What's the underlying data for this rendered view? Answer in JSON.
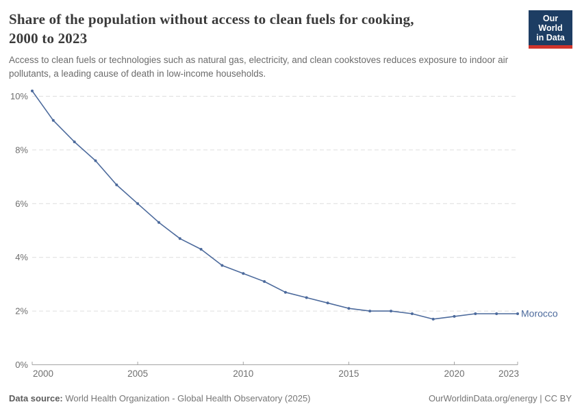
{
  "header": {
    "title_lines": [
      "Share of the population without access to clean fuels for cooking,",
      "2000 to 2023"
    ],
    "subtitle_lines": [
      "Access to clean fuels or technologies such as natural gas, electricity, and clean cookstoves reduces exposure to indoor air",
      "pollutants, a leading cause of death in low-income households."
    ]
  },
  "logo": {
    "line1": "Our World",
    "line2": "in Data",
    "bg_color": "#1d3d63",
    "accent_color": "#d0342c"
  },
  "chart_data": {
    "type": "line",
    "title": "Share of the population without access to clean fuels for cooking, 2000 to 2023",
    "xlabel": "",
    "ylabel": "",
    "x": [
      2000,
      2001,
      2002,
      2003,
      2004,
      2005,
      2006,
      2007,
      2008,
      2009,
      2010,
      2011,
      2012,
      2013,
      2014,
      2015,
      2016,
      2017,
      2018,
      2019,
      2020,
      2021,
      2022,
      2023
    ],
    "series": [
      {
        "name": "Morocco",
        "color": "#4c6a9c",
        "values": [
          10.2,
          9.1,
          8.3,
          7.6,
          6.7,
          6.0,
          5.3,
          4.7,
          4.3,
          3.7,
          3.4,
          3.1,
          2.7,
          2.5,
          2.3,
          2.1,
          2.0,
          2.0,
          1.9,
          1.7,
          1.8,
          1.9,
          1.9,
          1.9
        ]
      }
    ],
    "ylim": [
      0,
      10.5
    ],
    "yticks": [
      0,
      2,
      4,
      6,
      8,
      10
    ],
    "ytick_suffix": "%",
    "xticks": [
      2000,
      2005,
      2010,
      2015,
      2020,
      2023
    ],
    "grid": "horizontal-dashed",
    "legend": "end-of-line-label",
    "grid_color": "#dedede",
    "axis_color": "#a3a3a3",
    "tick_label_color": "#6f6f6f"
  },
  "footer": {
    "source_label": "Data source:",
    "source_text": " World Health Organization - Global Health Observatory (2025)",
    "credit": "OurWorldinData.org/energy | CC BY"
  }
}
